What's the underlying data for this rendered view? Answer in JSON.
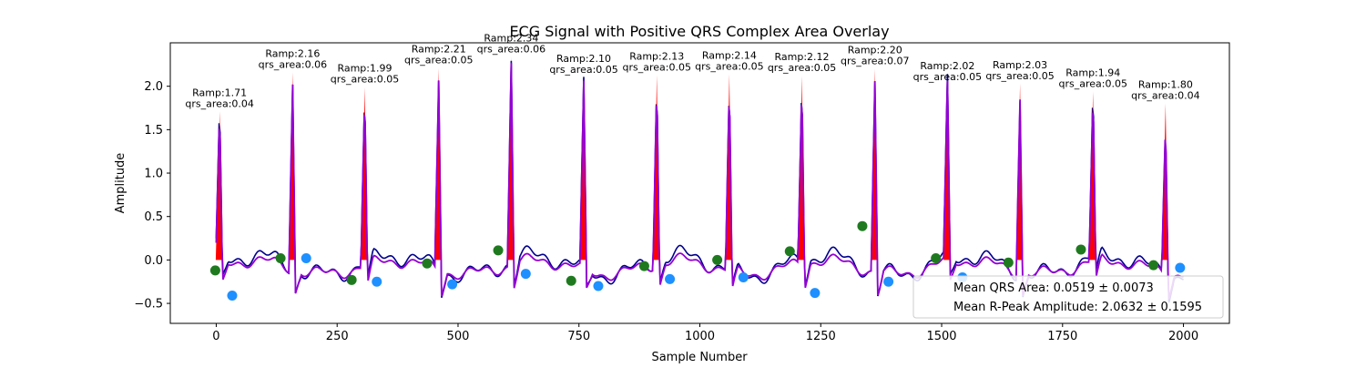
{
  "chart_data": {
    "type": "line",
    "title": "ECG Signal with Positive QRS Complex Area Overlay",
    "xlabel": "Sample Number",
    "ylabel": "Amplitude",
    "xlim": [
      -95,
      2095
    ],
    "ylim": [
      -0.73,
      2.5
    ],
    "xticks": [
      0,
      250,
      500,
      750,
      1000,
      1250,
      1500,
      1750,
      2000
    ],
    "yticks": [
      -0.5,
      0.0,
      0.5,
      1.0,
      1.5,
      2.0
    ],
    "ytick_labels": [
      "−0.5",
      "0.0",
      "0.5",
      "1.0",
      "1.5",
      "2.0"
    ],
    "grid": false,
    "colors": {
      "raw_ecg": "#00008b",
      "qrs_overlay": "#9400d3",
      "qrs_area_fill": "#ff0000",
      "onset_marker": "#1f7a1f",
      "offset_marker": "#1e90ff"
    },
    "beats": [
      {
        "peak_x": 7,
        "ramp": 1.71,
        "qrs_area": 0.04,
        "ramp_label": "Ramp:1.71",
        "area_label": "qrs_area:0.04"
      },
      {
        "peak_x": 158,
        "ramp": 2.16,
        "qrs_area": 0.06,
        "ramp_label": "Ramp:2.16",
        "area_label": "qrs_area:0.06"
      },
      {
        "peak_x": 307,
        "ramp": 1.99,
        "qrs_area": 0.05,
        "ramp_label": "Ramp:1.99",
        "area_label": "qrs_area:0.05"
      },
      {
        "peak_x": 460,
        "ramp": 2.21,
        "qrs_area": 0.05,
        "ramp_label": "Ramp:2.21",
        "area_label": "qrs_area:0.05"
      },
      {
        "peak_x": 610,
        "ramp": 2.34,
        "qrs_area": 0.06,
        "ramp_label": "Ramp:2.34",
        "area_label": "qrs_area:0.06"
      },
      {
        "peak_x": 760,
        "ramp": 2.1,
        "qrs_area": 0.05,
        "ramp_label": "Ramp:2.10",
        "area_label": "qrs_area:0.05"
      },
      {
        "peak_x": 911,
        "ramp": 2.13,
        "qrs_area": 0.05,
        "ramp_label": "Ramp:2.13",
        "area_label": "qrs_area:0.05"
      },
      {
        "peak_x": 1061,
        "ramp": 2.14,
        "qrs_area": 0.05,
        "ramp_label": "Ramp:2.14",
        "area_label": "qrs_area:0.05"
      },
      {
        "peak_x": 1211,
        "ramp": 2.12,
        "qrs_area": 0.05,
        "ramp_label": "Ramp:2.12",
        "area_label": "qrs_area:0.05"
      },
      {
        "peak_x": 1362,
        "ramp": 2.2,
        "qrs_area": 0.07,
        "ramp_label": "Ramp:2.20",
        "area_label": "qrs_area:0.07"
      },
      {
        "peak_x": 1512,
        "ramp": 2.02,
        "qrs_area": 0.05,
        "ramp_label": "Ramp:2.02",
        "area_label": "qrs_area:0.05"
      },
      {
        "peak_x": 1662,
        "ramp": 2.03,
        "qrs_area": 0.05,
        "ramp_label": "Ramp:2.03",
        "area_label": "qrs_area:0.05"
      },
      {
        "peak_x": 1813,
        "ramp": 1.94,
        "qrs_area": 0.05,
        "ramp_label": "Ramp:1.94",
        "area_label": "qrs_area:0.05"
      },
      {
        "peak_x": 1963,
        "ramp": 1.8,
        "qrs_area": 0.04,
        "ramp_label": "Ramp:1.80",
        "area_label": "qrs_area:0.04"
      }
    ],
    "onset_points": [
      {
        "x": -2,
        "y": -0.12
      },
      {
        "x": 133,
        "y": 0.02
      },
      {
        "x": 280,
        "y": -0.23
      },
      {
        "x": 436,
        "y": -0.04
      },
      {
        "x": 583,
        "y": 0.11
      },
      {
        "x": 734,
        "y": -0.24
      },
      {
        "x": 885,
        "y": -0.07
      },
      {
        "x": 1036,
        "y": 0.0
      },
      {
        "x": 1186,
        "y": 0.1
      },
      {
        "x": 1336,
        "y": 0.39
      },
      {
        "x": 1488,
        "y": 0.02
      },
      {
        "x": 1638,
        "y": -0.03
      },
      {
        "x": 1788,
        "y": 0.12
      },
      {
        "x": 1938,
        "y": -0.06
      }
    ],
    "offset_points": [
      {
        "x": 33,
        "y": -0.41
      },
      {
        "x": 186,
        "y": 0.02
      },
      {
        "x": 332,
        "y": -0.25
      },
      {
        "x": 488,
        "y": -0.28
      },
      {
        "x": 640,
        "y": -0.16
      },
      {
        "x": 790,
        "y": -0.3
      },
      {
        "x": 938,
        "y": -0.22
      },
      {
        "x": 1090,
        "y": -0.2
      },
      {
        "x": 1238,
        "y": -0.38
      },
      {
        "x": 1390,
        "y": -0.25
      },
      {
        "x": 1543,
        "y": -0.2
      },
      {
        "x": 1993,
        "y": -0.09
      }
    ],
    "legend": {
      "placement": "lower right",
      "entries": [
        "Mean QRS Area: 0.0519 ± 0.0073",
        "Mean R-Peak Amplitude: 2.0632 ± 0.1595"
      ]
    }
  }
}
